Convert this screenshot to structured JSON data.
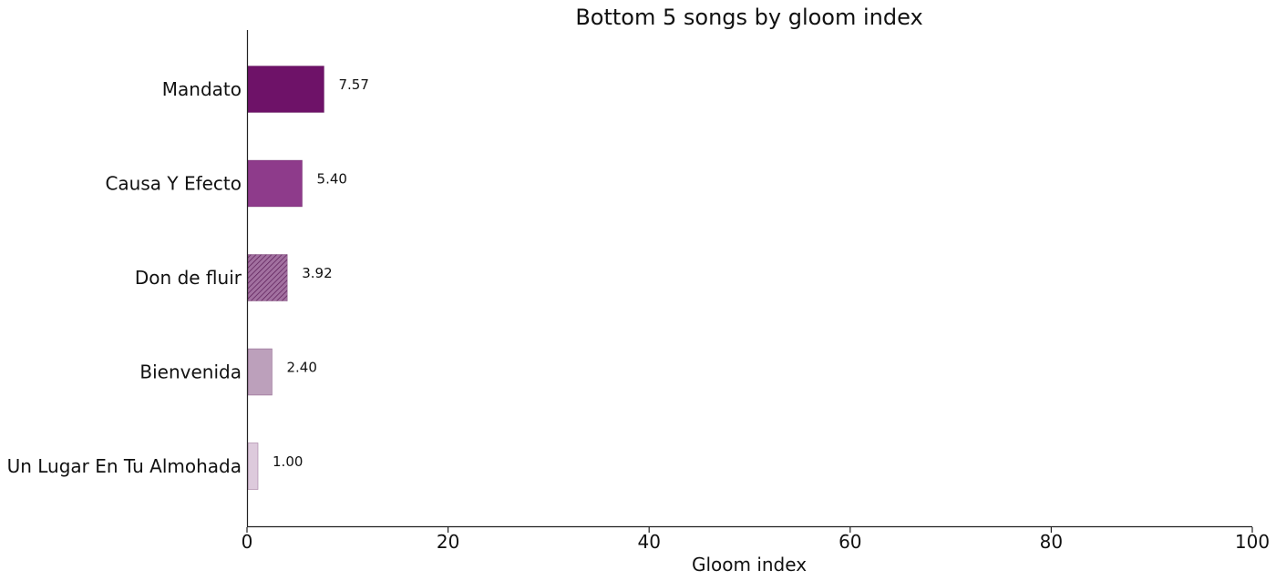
{
  "chart_data": {
    "type": "bar",
    "orientation": "horizontal",
    "title": "Bottom 5 songs by gloom index",
    "xlabel": "Gloom index",
    "ylabel": "",
    "xlim": [
      0,
      100
    ],
    "xticks": [
      0,
      20,
      40,
      60,
      80,
      100
    ],
    "grid": false,
    "categories": [
      "Mandato",
      "Causa Y Efecto",
      "Don de fluir",
      "Bienvenida",
      "Un Lugar En Tu Almohada"
    ],
    "values": [
      7.57,
      5.4,
      3.92,
      2.4,
      1.0
    ],
    "value_labels": [
      "7.57",
      "5.40",
      "3.92",
      "2.40",
      "1.00"
    ],
    "colors": [
      "#6e1268",
      "#8e3b8b",
      "#a271a0",
      "#bca0bb",
      "#ddcadc"
    ]
  }
}
